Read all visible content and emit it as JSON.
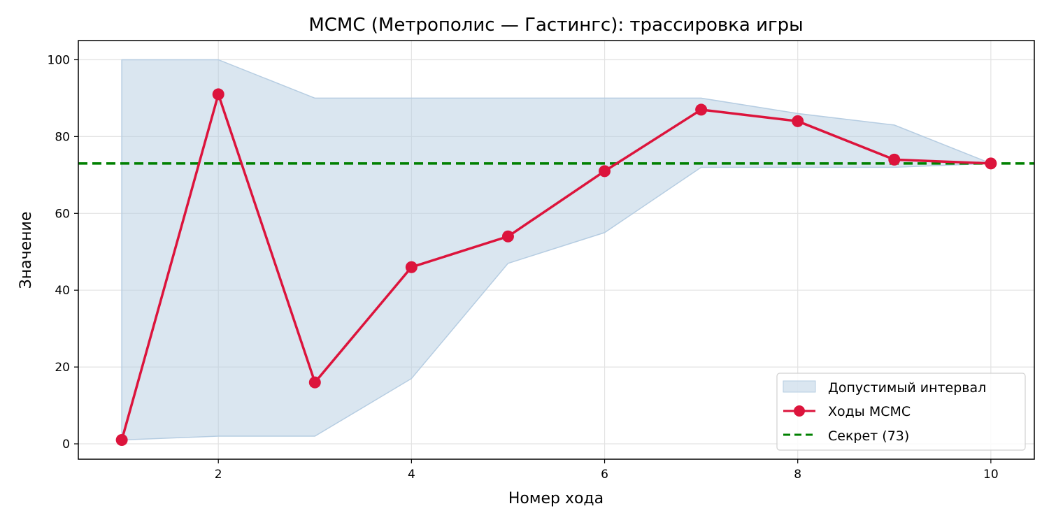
{
  "chart_data": {
    "type": "line",
    "title": "MCMC (Метрополис — Гастингс): трассировка игры",
    "xlabel": "Номер хода",
    "ylabel": "Значение",
    "xlim": [
      0.55,
      10.45
    ],
    "ylim": [
      -4,
      105
    ],
    "xticks": [
      2,
      4,
      6,
      8,
      10
    ],
    "yticks": [
      0,
      20,
      40,
      60,
      80,
      100
    ],
    "grid": true,
    "legend_position": "lower-right",
    "x": [
      1,
      2,
      3,
      4,
      5,
      6,
      7,
      8,
      9,
      10
    ],
    "series": [
      {
        "name": "Ходы MCMC",
        "kind": "line-markers",
        "color": "#dc143c",
        "values": [
          1,
          91,
          16,
          46,
          54,
          71,
          87,
          84,
          74,
          73
        ]
      }
    ],
    "band": {
      "name": "Допустимый интервал",
      "color": "#b6cde2",
      "lower": [
        1,
        2,
        2,
        17,
        47,
        55,
        72,
        72,
        72,
        73
      ],
      "upper": [
        100,
        100,
        90,
        90,
        90,
        90,
        90,
        86,
        83,
        73
      ]
    },
    "reference_line": {
      "name": "Секрет (73)",
      "value": 73,
      "color": "#008000",
      "style": "dashed"
    }
  }
}
